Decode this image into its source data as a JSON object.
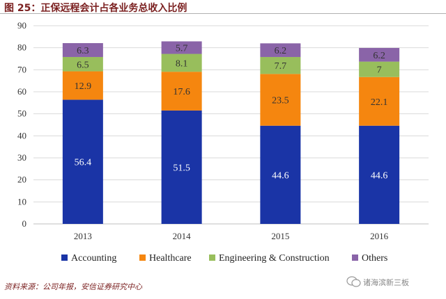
{
  "header": {
    "title": "图 25：正保远程会计占各业务总收入比例"
  },
  "footer": {
    "source": "资料来源：公司年报，安信证券研究中心",
    "watermark": "诸海滨新三板"
  },
  "colors": {
    "Accounting": "#1a34a6",
    "Healthcare": "#f5860f",
    "Engineering & Construction": "#98be5c",
    "Others": "#8a64a8"
  },
  "chart_data": {
    "type": "bar",
    "stacked": true,
    "title": "",
    "xlabel": "",
    "ylabel": "",
    "categories": [
      "2013",
      "2014",
      "2015",
      "2016"
    ],
    "ylim": [
      0,
      90
    ],
    "yticks": [
      0,
      10,
      20,
      30,
      40,
      50,
      60,
      70,
      80,
      90
    ],
    "grid": true,
    "legend": "bottom",
    "series": [
      {
        "name": "Accounting",
        "values": [
          56.4,
          51.5,
          44.6,
          44.6
        ]
      },
      {
        "name": "Healthcare",
        "values": [
          12.9,
          17.6,
          23.5,
          22.1
        ]
      },
      {
        "name": "Engineering & Construction",
        "values": [
          6.5,
          8.1,
          7.7,
          7
        ]
      },
      {
        "name": "Others",
        "values": [
          6.3,
          5.7,
          6.2,
          6.2
        ]
      }
    ],
    "data_labels": [
      [
        "56.4",
        "51.5",
        "44.6",
        "44.6"
      ],
      [
        "12.9",
        "17.6",
        "23.5",
        "22.1"
      ],
      [
        "6.5",
        "8.1",
        "7.7",
        "7"
      ],
      [
        "6.3",
        "5.7",
        "6.2",
        "6.2"
      ]
    ]
  }
}
